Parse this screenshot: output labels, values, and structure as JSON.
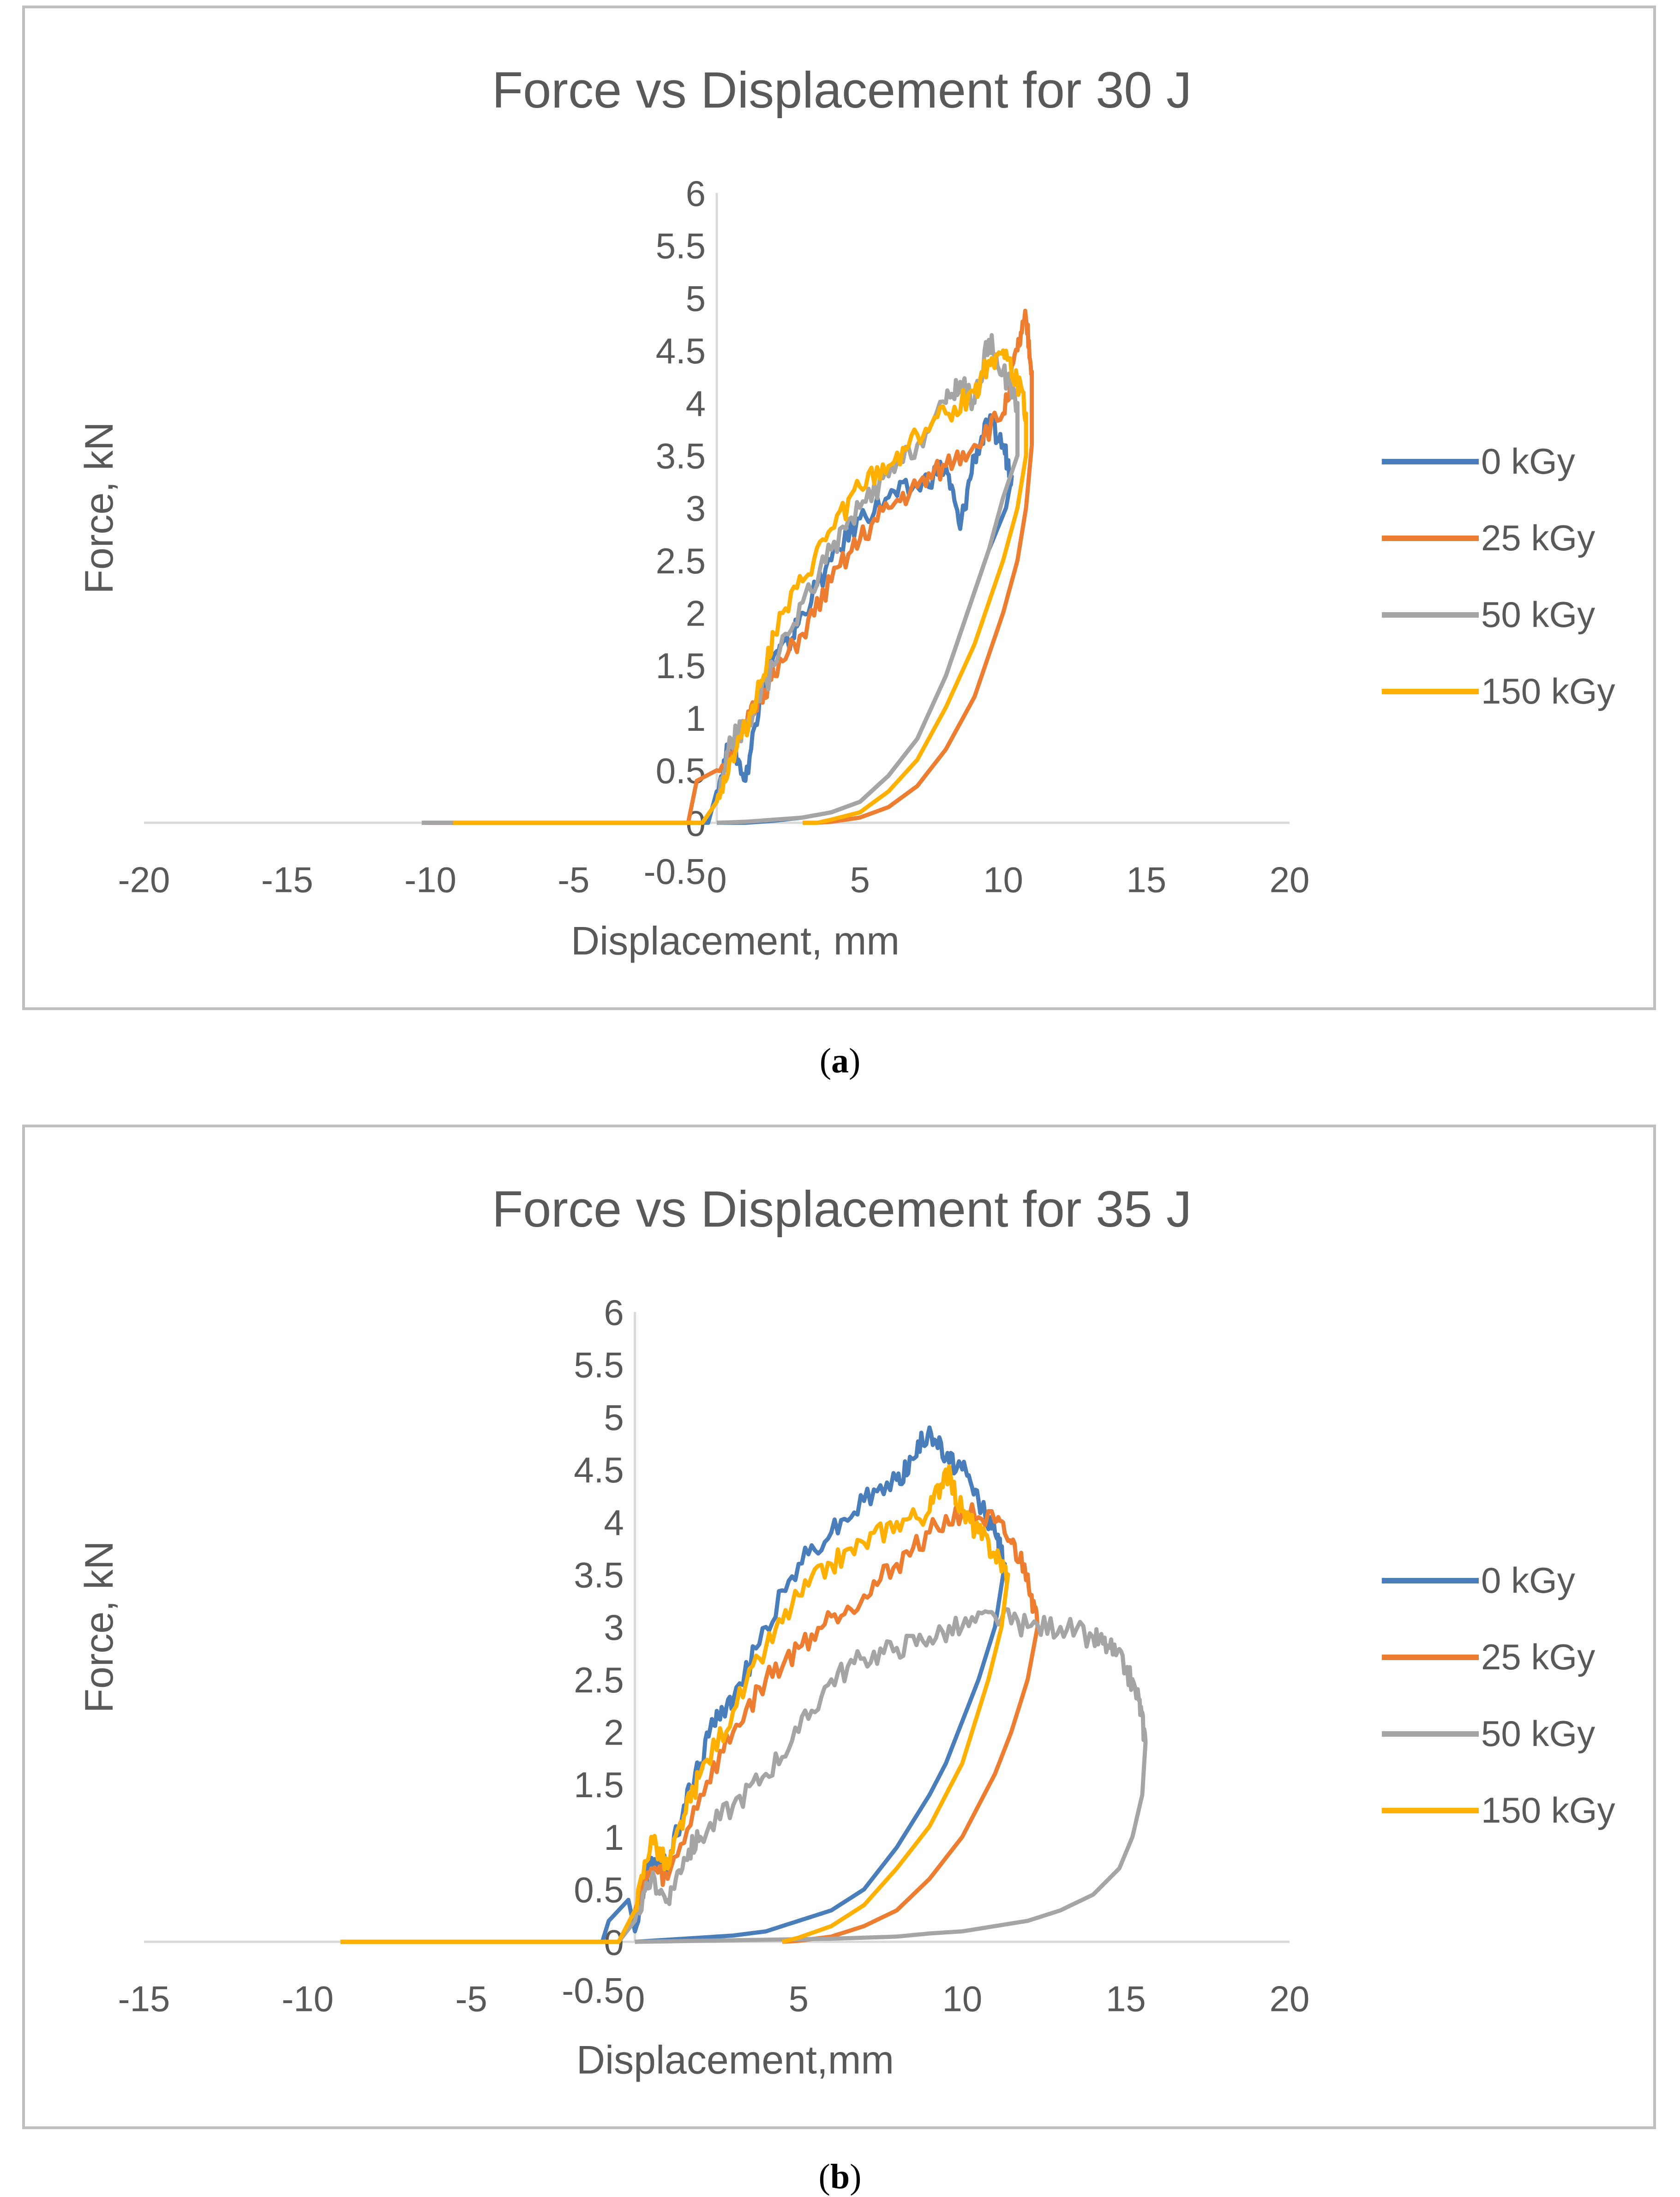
{
  "colors": {
    "0 kGy": "#4a7ebb",
    "25 kGy": "#ed7d31",
    "50 kGy": "#a5a5a5",
    "150 kGy": "#ffb000",
    "axis": "#d9d9d9",
    "text": "#595959"
  },
  "captions": [
    {
      "open": "(",
      "label": "a",
      "close": ")"
    },
    {
      "open": "(",
      "label": "b",
      "close": ")"
    }
  ],
  "chart_data": [
    {
      "type": "line",
      "title": "Force vs Displacement for 30 J",
      "xlabel": "Displacement, mm",
      "ylabel": "Force, kN",
      "xlim": [
        -20,
        20
      ],
      "ylim": [
        -0.5,
        6
      ],
      "xticks": [
        "-20",
        "-15",
        "-10",
        "-5",
        "0",
        "5",
        "10",
        "15",
        "20"
      ],
      "yticks": [
        "-0.5",
        "0",
        "0.5",
        "1",
        "1.5",
        "2",
        "2.5",
        "3",
        "3.5",
        "4",
        "4.5",
        "5",
        "5.5",
        "6"
      ],
      "legend_position": "right",
      "series": [
        {
          "name": "0 kGy",
          "x": [
            -10.3,
            -3,
            -0.3,
            0,
            0.5,
            1,
            1.5,
            2,
            2.5,
            3,
            4,
            5,
            6,
            7,
            8,
            8.5,
            9,
            9.5,
            10,
            10.3,
            10.1,
            9.5,
            9,
            8.5,
            8,
            7,
            6,
            5,
            4,
            3,
            2,
            1,
            0.3,
            0
          ],
          "y": [
            0,
            0,
            0,
            0.3,
            0.8,
            0.4,
            1.2,
            1.6,
            1.7,
            2.0,
            2.5,
            2.9,
            3.1,
            3.2,
            3.4,
            2.8,
            3.5,
            3.8,
            3.6,
            3.3,
            3.0,
            2.6,
            2.2,
            1.8,
            1.4,
            0.8,
            0.45,
            0.2,
            0.1,
            0.05,
            0.02,
            0,
            0,
            0
          ]
        },
        {
          "name": "25 kGy",
          "x": [
            -10.2,
            -3,
            -1,
            -0.7,
            0,
            1,
            1.5,
            2,
            3,
            4,
            5,
            6,
            7,
            8,
            9,
            10,
            10.5,
            10.8,
            11,
            11,
            10.8,
            10.5,
            10,
            9.5,
            9,
            8,
            7,
            6,
            5,
            4,
            3.5,
            3
          ],
          "y": [
            0,
            0,
            0,
            0.4,
            0.5,
            0.9,
            1.2,
            1.4,
            1.8,
            2.3,
            2.7,
            3.0,
            3.2,
            3.4,
            3.6,
            3.9,
            4.5,
            4.8,
            4.3,
            3.6,
            3.0,
            2.5,
            2.0,
            1.6,
            1.2,
            0.7,
            0.35,
            0.15,
            0.05,
            0.01,
            0,
            0
          ]
        },
        {
          "name": "50 kGy",
          "x": [
            -10.3,
            -3,
            -0.5,
            0,
            0.5,
            1,
            2,
            3,
            4,
            5,
            6,
            7,
            8,
            8.5,
            9,
            9.5,
            10,
            10.5,
            10.5,
            10,
            9.5,
            9,
            8,
            7,
            6,
            5,
            4,
            3,
            2,
            1,
            0
          ],
          "y": [
            0,
            0,
            0,
            0.2,
            0.8,
            0.9,
            1.5,
            2.1,
            2.6,
            3.0,
            3.3,
            3.6,
            4.0,
            4.2,
            4.0,
            4.6,
            4.3,
            4.0,
            3.5,
            3.1,
            2.6,
            2.2,
            1.4,
            0.8,
            0.45,
            0.2,
            0.1,
            0.05,
            0.03,
            0.01,
            0
          ]
        },
        {
          "name": "150 kGy",
          "x": [
            -9.2,
            -3,
            -0.5,
            0,
            0.5,
            1,
            1.5,
            2,
            3,
            4,
            5,
            6,
            7,
            8,
            9,
            9.5,
            10,
            10.5,
            10.8,
            10.8,
            10.5,
            10,
            9.5,
            9,
            8,
            7,
            6,
            5,
            4,
            3.5,
            3
          ],
          "y": [
            0,
            0,
            0,
            0.2,
            0.6,
            0.9,
            1.3,
            1.8,
            2.3,
            2.8,
            3.2,
            3.4,
            3.7,
            3.9,
            4.1,
            4.4,
            4.5,
            4.2,
            3.9,
            3.5,
            3.0,
            2.5,
            2.1,
            1.7,
            1.1,
            0.6,
            0.3,
            0.1,
            0.03,
            0,
            0
          ]
        }
      ]
    },
    {
      "type": "line",
      "title": "Force vs Displacement for 35 J",
      "xlabel": "Displacement,mm",
      "ylabel": "Force, kN",
      "xlim": [
        -15,
        20
      ],
      "ylim": [
        -0.5,
        6
      ],
      "xticks": [
        "-15",
        "-10",
        "-5",
        "0",
        "5",
        "10",
        "15",
        "20"
      ],
      "yticks": [
        "-0.5",
        "0",
        "0.5",
        "1",
        "1.5",
        "2",
        "2.5",
        "3",
        "3.5",
        "4",
        "4.5",
        "5",
        "5.5",
        "6"
      ],
      "legend_position": "right",
      "series": [
        {
          "name": "0 kGy",
          "x": [
            -9,
            -3,
            -1,
            -0.8,
            -0.2,
            0,
            0.5,
            1,
            1.5,
            2,
            2.5,
            3,
            4,
            5,
            6,
            7,
            8,
            8.5,
            9,
            9.5,
            10,
            10.5,
            11,
            11.3,
            11,
            10.5,
            10,
            9.5,
            9,
            8,
            7,
            6,
            5,
            4,
            3,
            2,
            1,
            0
          ],
          "y": [
            0,
            0,
            0,
            0.2,
            0.4,
            0.1,
            0.8,
            0.7,
            1.3,
            1.7,
            2.2,
            2.3,
            3.0,
            3.6,
            3.9,
            4.2,
            4.4,
            4.6,
            4.9,
            4.6,
            4.5,
            4.2,
            3.9,
            3.6,
            3.0,
            2.5,
            2.1,
            1.7,
            1.4,
            0.9,
            0.5,
            0.3,
            0.2,
            0.1,
            0.06,
            0.04,
            0.02,
            0
          ]
        },
        {
          "name": "25 kGy",
          "x": [
            -9,
            -3,
            -0.5,
            0,
            0.5,
            1,
            2,
            3,
            4,
            5,
            6,
            7,
            8,
            9,
            10,
            11,
            11.5,
            12,
            12.3,
            12,
            11.5,
            11,
            10.5,
            10,
            9,
            8,
            7,
            6,
            5,
            4.5
          ],
          "y": [
            0,
            0,
            0,
            0.3,
            0.7,
            0.6,
            1.4,
            2.0,
            2.5,
            2.8,
            3.1,
            3.3,
            3.6,
            3.9,
            4.1,
            4.0,
            3.8,
            3.5,
            3.0,
            2.5,
            2.0,
            1.6,
            1.3,
            1.0,
            0.6,
            0.3,
            0.15,
            0.05,
            0.01,
            0
          ]
        },
        {
          "name": "50 kGy",
          "x": [
            -9,
            -3,
            -0.5,
            0,
            0.5,
            1,
            1.5,
            2,
            3,
            4,
            5,
            6,
            7,
            8,
            9,
            10,
            11,
            12,
            13,
            14,
            14.5,
            15,
            15.4,
            15.6,
            15.5,
            15.2,
            14.8,
            14,
            13,
            12,
            11,
            10,
            9,
            8,
            6,
            4,
            2,
            0
          ],
          "y": [
            0,
            0,
            0,
            0.2,
            0.6,
            0.4,
            0.8,
            1.0,
            1.3,
            1.6,
            2.0,
            2.5,
            2.7,
            2.8,
            2.9,
            3.0,
            3.1,
            3.0,
            3.0,
            2.9,
            2.8,
            2.6,
            2.3,
            1.9,
            1.4,
            1.0,
            0.7,
            0.45,
            0.3,
            0.2,
            0.15,
            0.1,
            0.08,
            0.05,
            0.03,
            0.02,
            0.01,
            0
          ]
        },
        {
          "name": "150 kGy",
          "x": [
            -9,
            -3,
            -0.5,
            0,
            0.5,
            1,
            1.5,
            2,
            3,
            4,
            5,
            6,
            7,
            8,
            9,
            9.5,
            10,
            10.5,
            11,
            11.4,
            11.2,
            10.8,
            10.3,
            10,
            9.5,
            9,
            8,
            7,
            6,
            5,
            4.5
          ],
          "y": [
            0,
            0,
            0,
            0.3,
            1.0,
            0.7,
            1.2,
            1.6,
            2.2,
            2.8,
            3.3,
            3.6,
            3.8,
            4.0,
            4.1,
            4.5,
            4.1,
            3.9,
            3.7,
            3.5,
            3.0,
            2.5,
            2.0,
            1.7,
            1.4,
            1.1,
            0.7,
            0.35,
            0.15,
            0.04,
            0
          ]
        }
      ]
    }
  ]
}
